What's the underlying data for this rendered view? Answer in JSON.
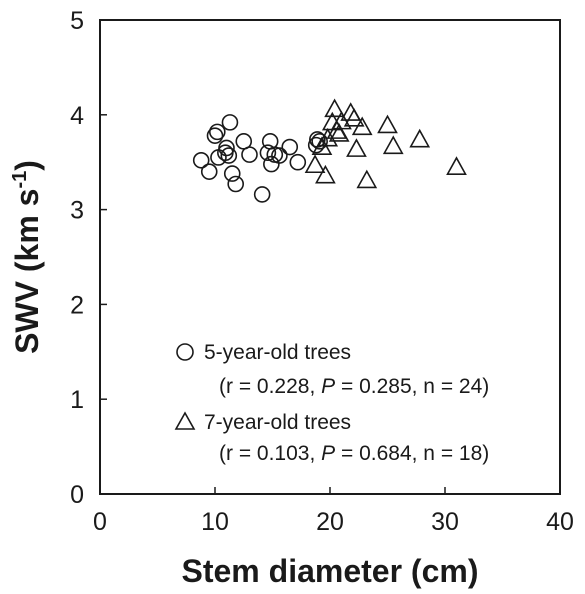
{
  "chart_data": {
    "type": "scatter",
    "xlabel": "Stem diameter (cm)",
    "ylabel_main": "SWV (km s",
    "ylabel_sup": "-1",
    "ylabel_end": ")",
    "xlim": [
      0,
      40
    ],
    "ylim": [
      0,
      5
    ],
    "xticks": [
      0,
      10,
      20,
      30,
      40
    ],
    "yticks": [
      0,
      1,
      2,
      3,
      4,
      5
    ],
    "grid": false,
    "legend_position": "bottom-right",
    "series": [
      {
        "name": "5-year-old trees",
        "marker": "circle",
        "stats_open": "(r = 0.228, ",
        "stats_p_symbol": "P",
        "stats_close": " = 0.285, n = 24)",
        "points": [
          [
            8.8,
            3.52
          ],
          [
            9.5,
            3.4
          ],
          [
            10.0,
            3.78
          ],
          [
            10.2,
            3.82
          ],
          [
            10.3,
            3.55
          ],
          [
            10.9,
            3.6
          ],
          [
            11.0,
            3.65
          ],
          [
            11.2,
            3.57
          ],
          [
            11.3,
            3.92
          ],
          [
            11.5,
            3.38
          ],
          [
            11.8,
            3.27
          ],
          [
            12.5,
            3.72
          ],
          [
            13.0,
            3.58
          ],
          [
            14.1,
            3.16
          ],
          [
            14.6,
            3.6
          ],
          [
            14.8,
            3.72
          ],
          [
            14.9,
            3.48
          ],
          [
            15.2,
            3.58
          ],
          [
            15.6,
            3.57
          ],
          [
            16.5,
            3.66
          ],
          [
            17.2,
            3.5
          ],
          [
            18.8,
            3.68
          ],
          [
            18.9,
            3.74
          ],
          [
            19.1,
            3.72
          ]
        ]
      },
      {
        "name": "7-year-old trees",
        "marker": "triangle",
        "stats_open": "(r = 0.103, ",
        "stats_p_symbol": "P",
        "stats_close": " = 0.684, n = 18)",
        "points": [
          [
            18.7,
            3.47
          ],
          [
            19.6,
            3.36
          ],
          [
            19.8,
            3.75
          ],
          [
            20.2,
            3.92
          ],
          [
            20.4,
            4.06
          ],
          [
            20.6,
            3.83
          ],
          [
            21.0,
            3.93
          ],
          [
            21.8,
            4.02
          ],
          [
            22.1,
            3.96
          ],
          [
            22.3,
            3.64
          ],
          [
            22.8,
            3.87
          ],
          [
            23.2,
            3.31
          ],
          [
            25.0,
            3.89
          ],
          [
            25.5,
            3.67
          ],
          [
            27.8,
            3.74
          ],
          [
            31.0,
            3.45
          ],
          [
            20.8,
            3.8
          ],
          [
            19.3,
            3.66
          ]
        ]
      }
    ]
  }
}
